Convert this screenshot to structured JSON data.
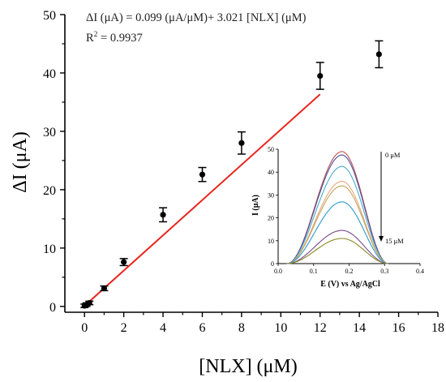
{
  "chart_data": [
    {
      "type": "scatter",
      "xlabel": "[NLX] (μM)",
      "ylabel": "ΔI (μA)",
      "xlim": [
        -1,
        18
      ],
      "ylim": [
        -1,
        50
      ],
      "x_ticks": [
        0,
        2,
        4,
        6,
        8,
        10,
        12,
        14,
        16,
        18
      ],
      "y_ticks": [
        0,
        10,
        20,
        30,
        40,
        50
      ],
      "equation": "ΔI (μA) = 0.099 (μA/μM)+ 3.021 [NLX] (μM)",
      "r2_label": "R",
      "r2_sup": "2",
      "r2_value": " = 0.9937",
      "points": [
        {
          "x": 0,
          "y": 0.1,
          "err": 0.3
        },
        {
          "x": 0.1,
          "y": 0.3,
          "err": 0.3
        },
        {
          "x": 0.25,
          "y": 0.6,
          "err": 0.3
        },
        {
          "x": 1,
          "y": 3.1,
          "err": 0.4
        },
        {
          "x": 2,
          "y": 7.6,
          "err": 0.6
        },
        {
          "x": 4,
          "y": 15.7,
          "err": 1.2
        },
        {
          "x": 6,
          "y": 22.6,
          "err": 1.2
        },
        {
          "x": 8,
          "y": 28.0,
          "err": 1.9
        },
        {
          "x": 12,
          "y": 39.5,
          "err": 2.3
        },
        {
          "x": 15,
          "y": 43.2,
          "err": 2.3
        }
      ],
      "fit": {
        "x0": 0,
        "x1": 12,
        "intercept": 0.099,
        "slope": 3.021,
        "color": "#e8251f"
      },
      "colors": {
        "points": "#000000",
        "axes": "#000000"
      }
    },
    {
      "type": "line",
      "xlabel": "E (V) vs Ag/AgCl",
      "ylabel": "I (μA)",
      "xlim": [
        0,
        0.4
      ],
      "ylim": [
        0,
        50
      ],
      "x_ticks": [
        0.0,
        0.1,
        0.2,
        0.3,
        0.4
      ],
      "y_ticks": [
        0,
        10,
        20,
        30,
        40,
        50
      ],
      "label_top": "0 μM",
      "label_bottom": "15 μM",
      "curve_x_range": [
        0.025,
        0.31
      ],
      "peak_x": 0.18,
      "series": [
        {
          "peak": 49,
          "color": "#c0504d"
        },
        {
          "peak": 47.5,
          "color": "#4b4f9e"
        },
        {
          "peak": 42.5,
          "color": "#4bacc6"
        },
        {
          "peak": 36,
          "color": "#e8a87c"
        },
        {
          "peak": 34,
          "color": "#c4a35a"
        },
        {
          "peak": 27,
          "color": "#2e9ad0"
        },
        {
          "peak": 14.5,
          "color": "#7a4a8c"
        },
        {
          "peak": 11,
          "color": "#8a8a2a"
        }
      ]
    }
  ]
}
